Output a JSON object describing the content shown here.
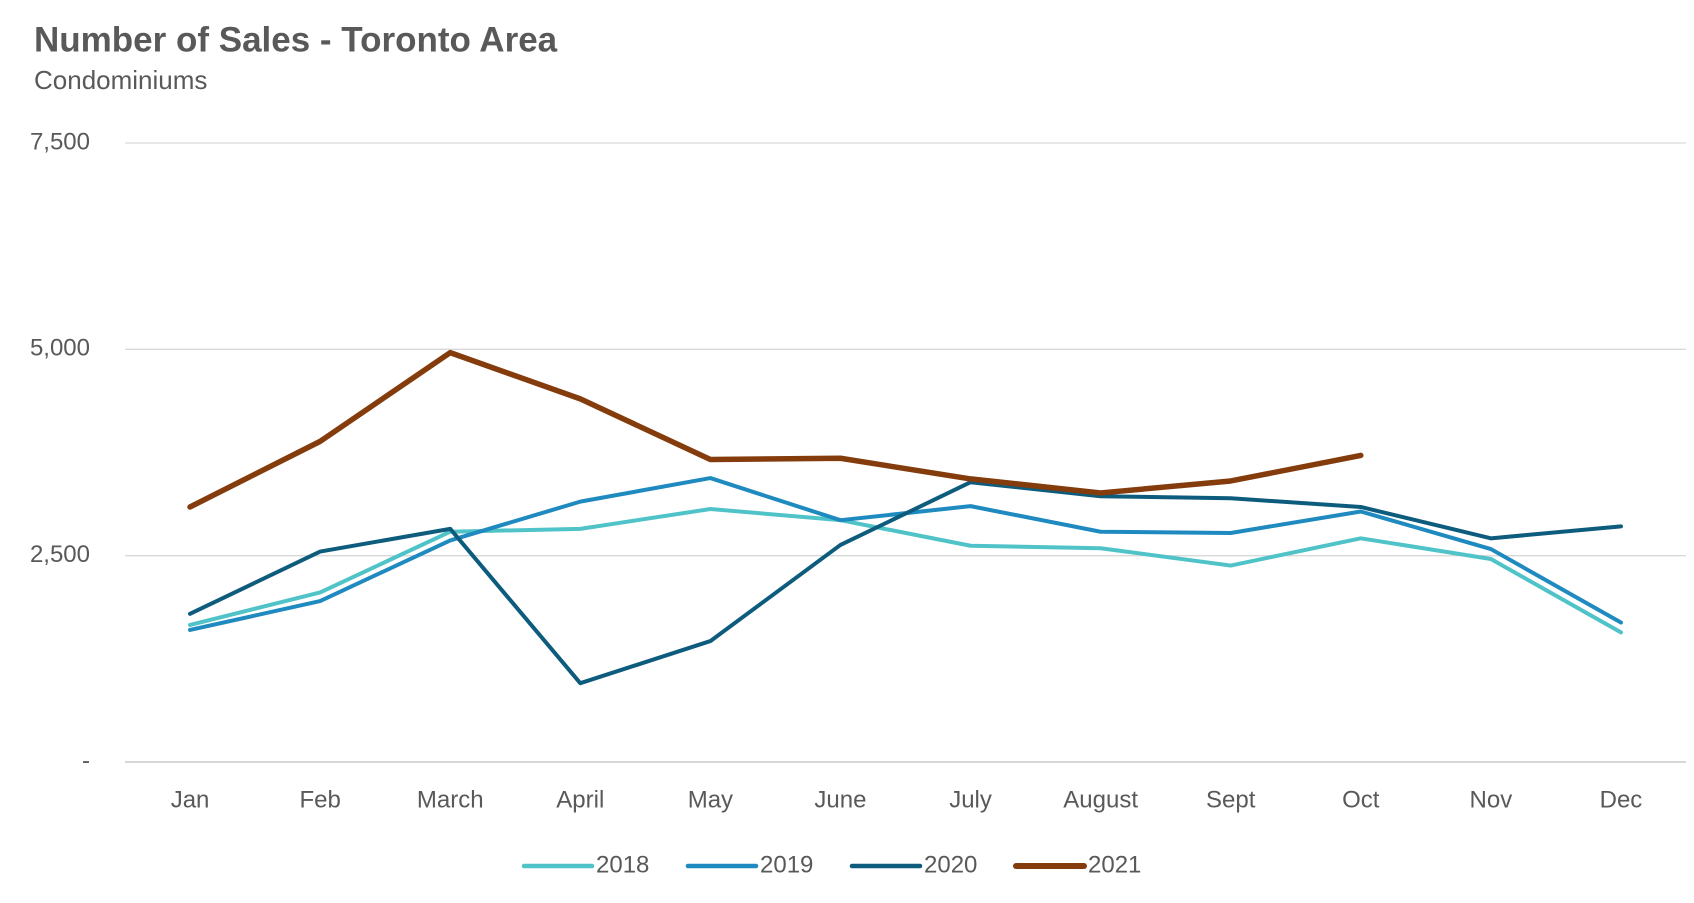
{
  "chart_data": {
    "type": "line",
    "title": "Number of Sales - Toronto Area",
    "subtitle": "Condominiums",
    "categories": [
      "Jan",
      "Feb",
      "March",
      "April",
      "May",
      "June",
      "July",
      "August",
      "Sept",
      "Oct",
      "Nov",
      "Dec"
    ],
    "series": [
      {
        "name": "2018",
        "color": "#4fc3c8",
        "values": [
          1660,
          2055,
          2790,
          2825,
          3065,
          2930,
          2620,
          2590,
          2380,
          2710,
          2460,
          1570
        ]
      },
      {
        "name": "2019",
        "color": "#1f8ac0",
        "values": [
          1600,
          1950,
          2685,
          3155,
          3440,
          2930,
          3100,
          2790,
          2775,
          3035,
          2580,
          1690
        ]
      },
      {
        "name": "2020",
        "color": "#0d5c7d",
        "values": [
          1795,
          2550,
          2825,
          955,
          1465,
          2630,
          3390,
          3220,
          3195,
          3090,
          2710,
          2855
        ]
      },
      {
        "name": "2021",
        "color": "#843c0c",
        "values": [
          3090,
          3885,
          4960,
          4400,
          3665,
          3680,
          3430,
          3260,
          3405,
          3715,
          null,
          null
        ]
      }
    ],
    "ylim": [
      0,
      7500
    ],
    "yticks": [
      {
        "value": 0,
        "label": "-"
      },
      {
        "value": 2500,
        "label": "2,500"
      },
      {
        "value": 5000,
        "label": "5,000"
      },
      {
        "value": 7500,
        "label": "7,500"
      }
    ],
    "grid": true,
    "legend": "bottom"
  }
}
